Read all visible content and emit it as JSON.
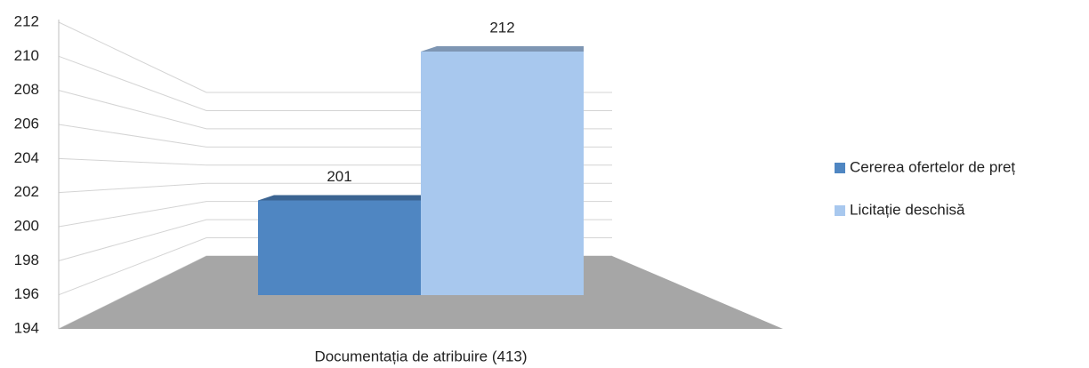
{
  "chart_data": {
    "type": "bar3d",
    "categories": [
      "Documentația de atribuire (413)"
    ],
    "series": [
      {
        "name": "Cererea ofertelor de preț",
        "color": "#4f86c2",
        "values": [
          201
        ]
      },
      {
        "name": "Licitație deschisă",
        "color": "#a8c8ee",
        "values": [
          212
        ]
      }
    ],
    "ylim": [
      194,
      212
    ],
    "yticks": [
      194,
      196,
      198,
      200,
      202,
      204,
      206,
      208,
      210,
      212
    ],
    "grid": true,
    "legend": "right"
  }
}
